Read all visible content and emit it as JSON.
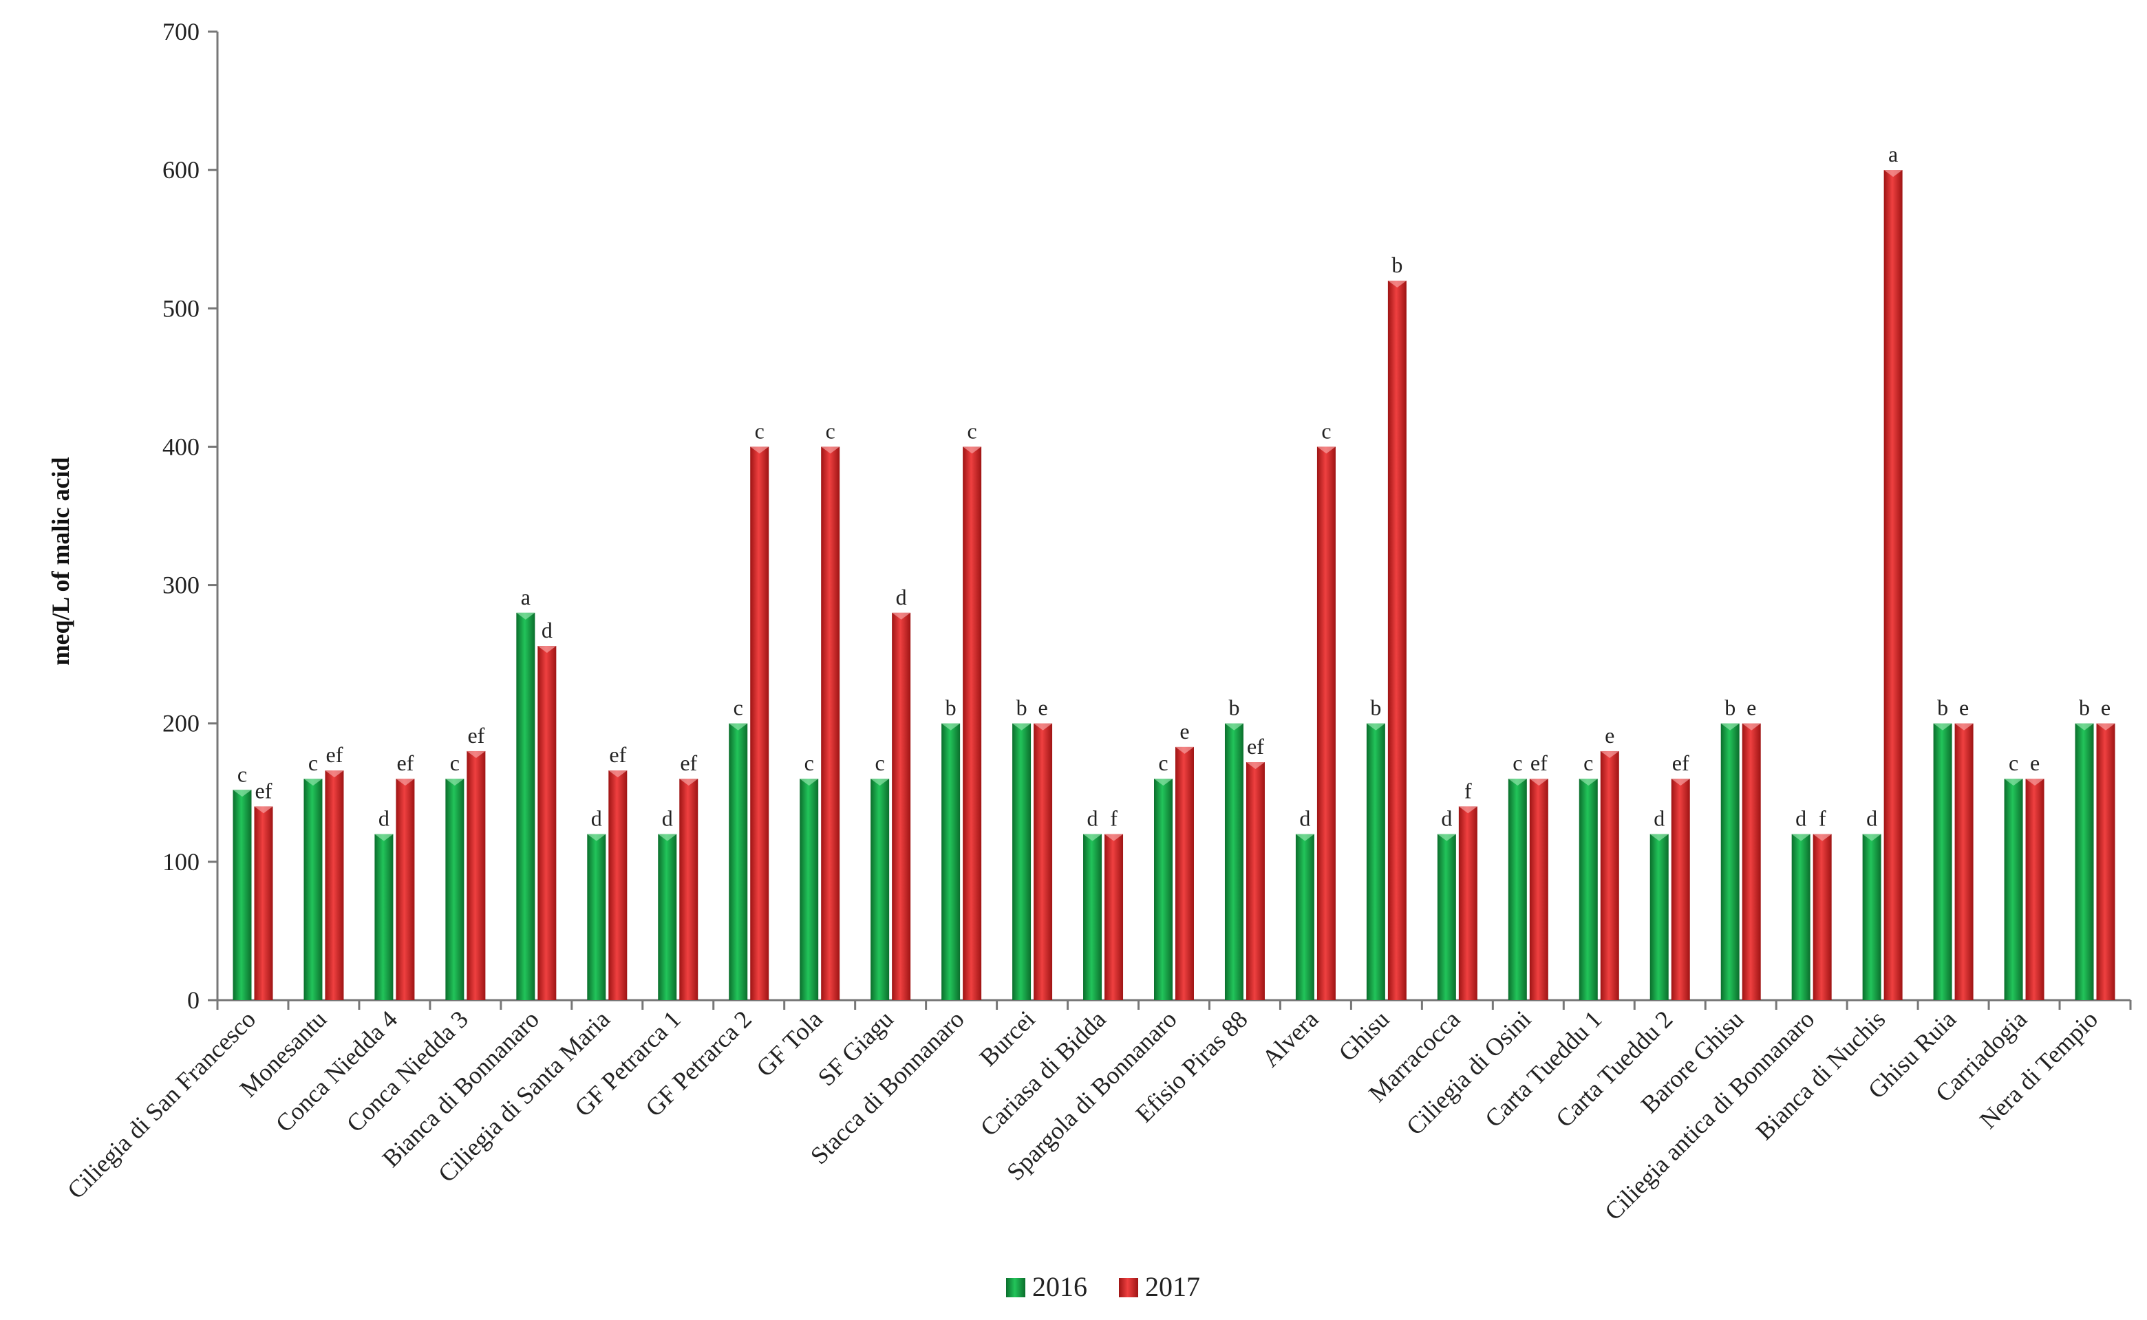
{
  "chart_data": {
    "type": "bar",
    "title": "",
    "xlabel": "",
    "ylabel": "meq/L of malic acid",
    "ylim": [
      0,
      700
    ],
    "yticks": [
      0,
      100,
      200,
      300,
      400,
      500,
      600,
      700
    ],
    "grid": false,
    "legend_position": "bottom-center",
    "categories": [
      "Ciliegia di San Francesco",
      "Monesantu",
      "Conca Niedda 4",
      "Conca Niedda 3",
      "Bianca di Bonnanaro",
      "Ciliegia di Santa Maria",
      "GF Petrarca 1",
      "GF Petrarca 2",
      "GF Tola",
      "SF Giagu",
      "Stacca di Bonnanaro",
      "Burcei",
      "Cariasa di Bidda",
      "Spargola di Bonnanaro",
      "Efisio Piras 88",
      "Alvera",
      "Ghisu",
      "Marracocca",
      "Ciliegia di Osini",
      "Carta Tueddu 1",
      "Carta Tueddu 2",
      "Barore Ghisu",
      "Ciliegia antica di Bonnanaro",
      "Bianca di Nuchis",
      "Ghisu Ruia",
      "Carriadogia",
      "Nera di Tempio"
    ],
    "series": [
      {
        "name": "2016",
        "color": "#1aa34a",
        "values": [
          152,
          160,
          120,
          160,
          280,
          120,
          120,
          200,
          160,
          160,
          200,
          200,
          120,
          160,
          200,
          120,
          200,
          120,
          160,
          160,
          120,
          200,
          120,
          120,
          200,
          160,
          200
        ],
        "labels": [
          "c",
          "c",
          "d",
          "c",
          "a",
          "d",
          "d",
          "c",
          "c",
          "c",
          "b",
          "b",
          "d",
          "c",
          "b",
          "d",
          "b",
          "d",
          "c",
          "c",
          "d",
          "b",
          "d",
          "d",
          "b",
          "c",
          "b"
        ]
      },
      {
        "name": "2017",
        "color": "#d42a2a",
        "values": [
          140,
          166,
          160,
          180,
          256,
          166,
          160,
          400,
          400,
          280,
          400,
          200,
          120,
          183,
          172,
          400,
          520,
          140,
          160,
          180,
          160,
          200,
          120,
          600,
          200,
          160,
          200
        ],
        "labels": [
          "ef",
          "ef",
          "ef",
          "ef",
          "d",
          "ef",
          "ef",
          "c",
          "c",
          "d",
          "c",
          "e",
          "f",
          "e",
          "ef",
          "c",
          "b",
          "f",
          "ef",
          "e",
          "ef",
          "e",
          "f",
          "a",
          "e",
          "e",
          "e"
        ]
      }
    ]
  }
}
